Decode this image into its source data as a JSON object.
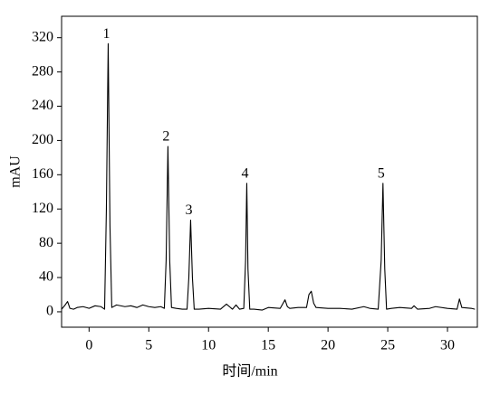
{
  "chart_data": {
    "type": "line",
    "xlabel": "时间/min",
    "ylabel": "mAU",
    "xlim": [
      -2.3,
      32.5
    ],
    "ylim": [
      -18,
      345
    ],
    "xticks": [
      0,
      5,
      10,
      15,
      20,
      25,
      30
    ],
    "yticks": [
      0,
      40,
      80,
      120,
      160,
      200,
      240,
      280,
      320
    ],
    "grid": false,
    "x": [
      -2.3,
      -2.0,
      -1.8,
      -1.6,
      -1.3,
      -1.0,
      -0.5,
      0,
      0.5,
      1.0,
      1.3,
      1.45,
      1.6,
      1.75,
      1.9,
      2.3,
      3,
      3.5,
      4,
      4.5,
      5,
      5.5,
      6,
      6.3,
      6.45,
      6.6,
      6.75,
      6.9,
      7.3,
      7.8,
      8.2,
      8.35,
      8.5,
      8.65,
      8.8,
      9.2,
      10,
      11,
      11.5,
      12,
      12.3,
      12.6,
      12.95,
      13.1,
      13.2,
      13.3,
      13.45,
      13.8,
      14.5,
      15,
      16,
      16.4,
      16.6,
      16.8,
      17.5,
      18.2,
      18.4,
      18.6,
      18.8,
      19,
      20,
      21,
      22,
      23,
      23.5,
      24.2,
      24.45,
      24.6,
      24.75,
      24.9,
      25.3,
      26,
      27,
      27.2,
      27.5,
      28.5,
      29,
      30,
      30.8,
      31,
      31.2,
      32,
      32.3
    ],
    "series": [
      {
        "color": "#000000",
        "values": [
          3,
          8,
          12,
          4,
          3,
          5,
          6,
          4,
          7,
          6,
          3,
          120,
          313,
          100,
          5,
          8,
          6,
          7,
          5,
          8,
          6,
          5,
          6,
          4,
          60,
          193,
          60,
          5,
          4,
          3,
          3,
          40,
          107,
          40,
          3,
          3,
          4,
          3,
          9,
          3,
          8,
          3,
          4,
          60,
          150,
          50,
          3,
          3,
          2,
          5,
          4,
          14,
          6,
          4,
          5,
          5,
          20,
          24,
          10,
          5,
          4,
          4,
          3,
          6,
          4,
          3,
          60,
          150,
          50,
          3,
          4,
          5,
          4,
          7,
          3,
          4,
          6,
          4,
          3,
          15,
          5,
          4,
          3
        ]
      }
    ],
    "annotations": [
      {
        "text": "1",
        "x": 1.6,
        "y": 313
      },
      {
        "text": "2",
        "x": 6.6,
        "y": 193
      },
      {
        "text": "3",
        "x": 8.5,
        "y": 107
      },
      {
        "text": "4",
        "x": 13.2,
        "y": 150
      },
      {
        "text": "5",
        "x": 24.6,
        "y": 150
      }
    ]
  }
}
